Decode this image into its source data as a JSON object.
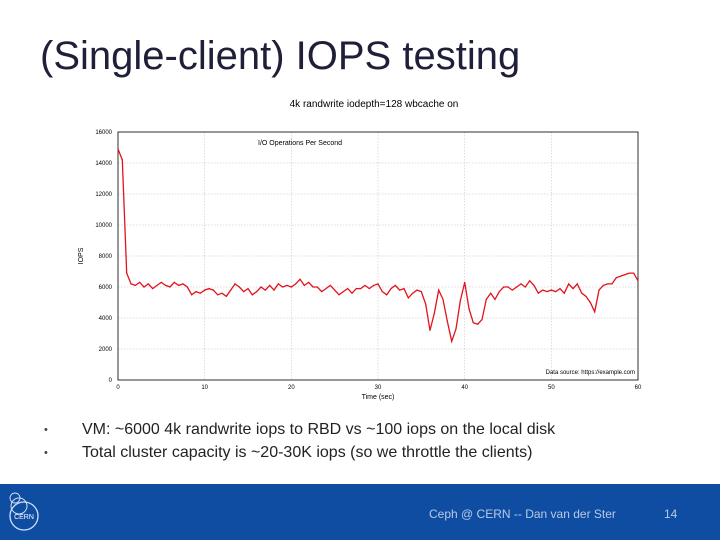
{
  "slide": {
    "title": "(Single-client) IOPS testing",
    "bullets": [
      "VM: ~6000 4k randwrite iops to RBD vs ~100 iops on the local disk",
      "Total cluster capacity is ~20-30K iops (so we throttle the clients)"
    ],
    "bullet_symbol": "•"
  },
  "footer": {
    "text": "Ceph @ CERN -- Dan van der Ster",
    "page_number": "14",
    "logo_text": "CERN"
  },
  "colors": {
    "footer_bg": "#0f4da2",
    "series_line": "#e3121b",
    "title_text": "#1f1f3a"
  },
  "chart_data": {
    "type": "line",
    "title": "4k randwrite iodepth=128 wbcache on",
    "xlabel": "Time (sec)",
    "ylabel": "IOPS",
    "xlim": [
      0,
      60
    ],
    "ylim": [
      0,
      16000
    ],
    "x_ticks": [
      0,
      10,
      20,
      30,
      40,
      50,
      60
    ],
    "y_ticks": [
      0,
      2000,
      4000,
      6000,
      8000,
      10000,
      12000,
      14000,
      16000
    ],
    "grid": true,
    "legend_position": "top-left",
    "annotation": "Data source: https://example.com",
    "series": [
      {
        "name": "I/O Operations Per Second",
        "color": "#e3121b",
        "x": [
          0,
          0.5,
          1,
          1.5,
          2,
          2.5,
          3,
          3.5,
          4,
          4.5,
          5,
          5.5,
          6,
          6.5,
          7,
          7.5,
          8,
          8.5,
          9,
          9.5,
          10,
          10.5,
          11,
          11.5,
          12,
          12.5,
          13,
          13.5,
          14,
          14.5,
          15,
          15.5,
          16,
          16.5,
          17,
          17.5,
          18,
          18.5,
          19,
          19.5,
          20,
          20.5,
          21,
          21.5,
          22,
          22.5,
          23,
          23.5,
          24,
          24.5,
          25,
          25.5,
          26,
          26.5,
          27,
          27.5,
          28,
          28.5,
          29,
          29.5,
          30,
          30.5,
          31,
          31.5,
          32,
          32.5,
          33,
          33.5,
          34,
          34.5,
          35,
          35.5,
          36,
          36.5,
          37,
          37.5,
          38,
          38.5,
          39,
          39.5,
          40,
          40.5,
          41,
          41.5,
          42,
          42.5,
          43,
          43.5,
          44,
          44.5,
          45,
          45.5,
          46,
          46.5,
          47,
          47.5,
          48,
          48.5,
          49,
          49.5,
          50,
          50.5,
          51,
          51.5,
          52,
          52.5,
          53,
          53.5,
          54,
          54.5,
          55,
          55.5,
          56,
          56.5,
          57,
          57.5,
          58,
          58.5,
          59,
          59.5,
          60
        ],
        "values": [
          14900,
          14200,
          6900,
          6200,
          6100,
          6300,
          6000,
          6200,
          5900,
          6100,
          6300,
          6100,
          6000,
          6300,
          6100,
          6200,
          6000,
          5500,
          5700,
          5600,
          5800,
          5900,
          5800,
          5500,
          5600,
          5400,
          5800,
          6200,
          6000,
          5700,
          5900,
          5500,
          5700,
          6000,
          5800,
          6100,
          5800,
          6200,
          6000,
          6100,
          6000,
          6200,
          6500,
          6100,
          6300,
          6000,
          6000,
          5700,
          5900,
          6100,
          5800,
          5500,
          5700,
          5900,
          5600,
          5900,
          5900,
          6100,
          5900,
          6100,
          6200,
          5700,
          5500,
          5900,
          6100,
          5800,
          5900,
          5300,
          5600,
          5800,
          5700,
          4900,
          3200,
          4300,
          5800,
          5200,
          3800,
          2500,
          3300,
          5100,
          6300,
          4600,
          3700,
          3600,
          3900,
          5200,
          5600,
          5200,
          5700,
          6000,
          6000,
          5800,
          6000,
          6200,
          6000,
          6400,
          6100,
          5600,
          5800,
          5700,
          5800,
          5700,
          5900,
          5600,
          6200,
          5900,
          6200,
          5600,
          5400,
          5000,
          4400,
          5800,
          6100,
          6200,
          6200,
          6600,
          6700,
          6800,
          6900,
          6900,
          6400
        ]
      }
    ]
  }
}
